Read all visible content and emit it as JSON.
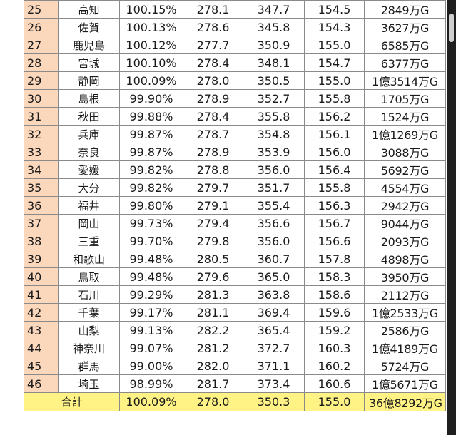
{
  "rows": [
    {
      "rank": "25",
      "pref": "高知",
      "rate": "100.15%",
      "c1": "278.1",
      "c2": "347.7",
      "c3": "154.5",
      "amount": "2849万G"
    },
    {
      "rank": "26",
      "pref": "佐賀",
      "rate": "100.13%",
      "c1": "278.6",
      "c2": "345.8",
      "c3": "154.3",
      "amount": "3627万G"
    },
    {
      "rank": "27",
      "pref": "鹿児島",
      "rate": "100.12%",
      "c1": "277.7",
      "c2": "350.9",
      "c3": "155.0",
      "amount": "6585万G"
    },
    {
      "rank": "28",
      "pref": "宮城",
      "rate": "100.10%",
      "c1": "278.4",
      "c2": "348.1",
      "c3": "154.7",
      "amount": "6377万G"
    },
    {
      "rank": "29",
      "pref": "静岡",
      "rate": "100.09%",
      "c1": "278.0",
      "c2": "350.5",
      "c3": "155.0",
      "amount": "1億3514万G"
    },
    {
      "rank": "30",
      "pref": "島根",
      "rate": "99.90%",
      "c1": "278.9",
      "c2": "352.7",
      "c3": "155.8",
      "amount": "1705万G"
    },
    {
      "rank": "31",
      "pref": "秋田",
      "rate": "99.88%",
      "c1": "278.4",
      "c2": "355.8",
      "c3": "156.2",
      "amount": "1524万G"
    },
    {
      "rank": "32",
      "pref": "兵庫",
      "rate": "99.87%",
      "c1": "278.7",
      "c2": "354.8",
      "c3": "156.1",
      "amount": "1億1269万G"
    },
    {
      "rank": "33",
      "pref": "奈良",
      "rate": "99.87%",
      "c1": "278.9",
      "c2": "353.9",
      "c3": "156.0",
      "amount": "3088万G"
    },
    {
      "rank": "34",
      "pref": "愛媛",
      "rate": "99.82%",
      "c1": "278.8",
      "c2": "356.0",
      "c3": "156.4",
      "amount": "5692万G"
    },
    {
      "rank": "35",
      "pref": "大分",
      "rate": "99.82%",
      "c1": "279.7",
      "c2": "351.7",
      "c3": "155.8",
      "amount": "4554万G"
    },
    {
      "rank": "36",
      "pref": "福井",
      "rate": "99.80%",
      "c1": "279.1",
      "c2": "355.4",
      "c3": "156.3",
      "amount": "2942万G"
    },
    {
      "rank": "37",
      "pref": "岡山",
      "rate": "99.73%",
      "c1": "279.4",
      "c2": "356.6",
      "c3": "156.7",
      "amount": "9044万G"
    },
    {
      "rank": "38",
      "pref": "三重",
      "rate": "99.70%",
      "c1": "279.8",
      "c2": "356.0",
      "c3": "156.6",
      "amount": "2093万G"
    },
    {
      "rank": "39",
      "pref": "和歌山",
      "rate": "99.48%",
      "c1": "280.5",
      "c2": "360.7",
      "c3": "157.8",
      "amount": "4898万G"
    },
    {
      "rank": "40",
      "pref": "鳥取",
      "rate": "99.48%",
      "c1": "279.6",
      "c2": "365.0",
      "c3": "158.3",
      "amount": "3950万G"
    },
    {
      "rank": "41",
      "pref": "石川",
      "rate": "99.29%",
      "c1": "281.3",
      "c2": "363.8",
      "c3": "158.6",
      "amount": "2112万G"
    },
    {
      "rank": "42",
      "pref": "千葉",
      "rate": "99.17%",
      "c1": "281.1",
      "c2": "369.4",
      "c3": "159.6",
      "amount": "1億2533万G"
    },
    {
      "rank": "43",
      "pref": "山梨",
      "rate": "99.13%",
      "c1": "282.2",
      "c2": "365.4",
      "c3": "159.2",
      "amount": "2586万G"
    },
    {
      "rank": "44",
      "pref": "神奈川",
      "rate": "99.07%",
      "c1": "281.2",
      "c2": "372.7",
      "c3": "160.3",
      "amount": "1億4189万G"
    },
    {
      "rank": "45",
      "pref": "群馬",
      "rate": "99.00%",
      "c1": "282.0",
      "c2": "371.1",
      "c3": "160.2",
      "amount": "5724万G"
    },
    {
      "rank": "46",
      "pref": "埼玉",
      "rate": "98.99%",
      "c1": "281.7",
      "c2": "373.4",
      "c3": "160.6",
      "amount": "1億5671万G"
    }
  ],
  "total": {
    "label": "合計",
    "rate": "100.09%",
    "c1": "278.0",
    "c2": "350.3",
    "c3": "155.0",
    "amount": "36億8292万G"
  },
  "colors": {
    "rank_bg": "#fbd7bc",
    "total_bg": "#fff385",
    "border": "#8a8a8a",
    "edge": "#1f1f1f"
  }
}
